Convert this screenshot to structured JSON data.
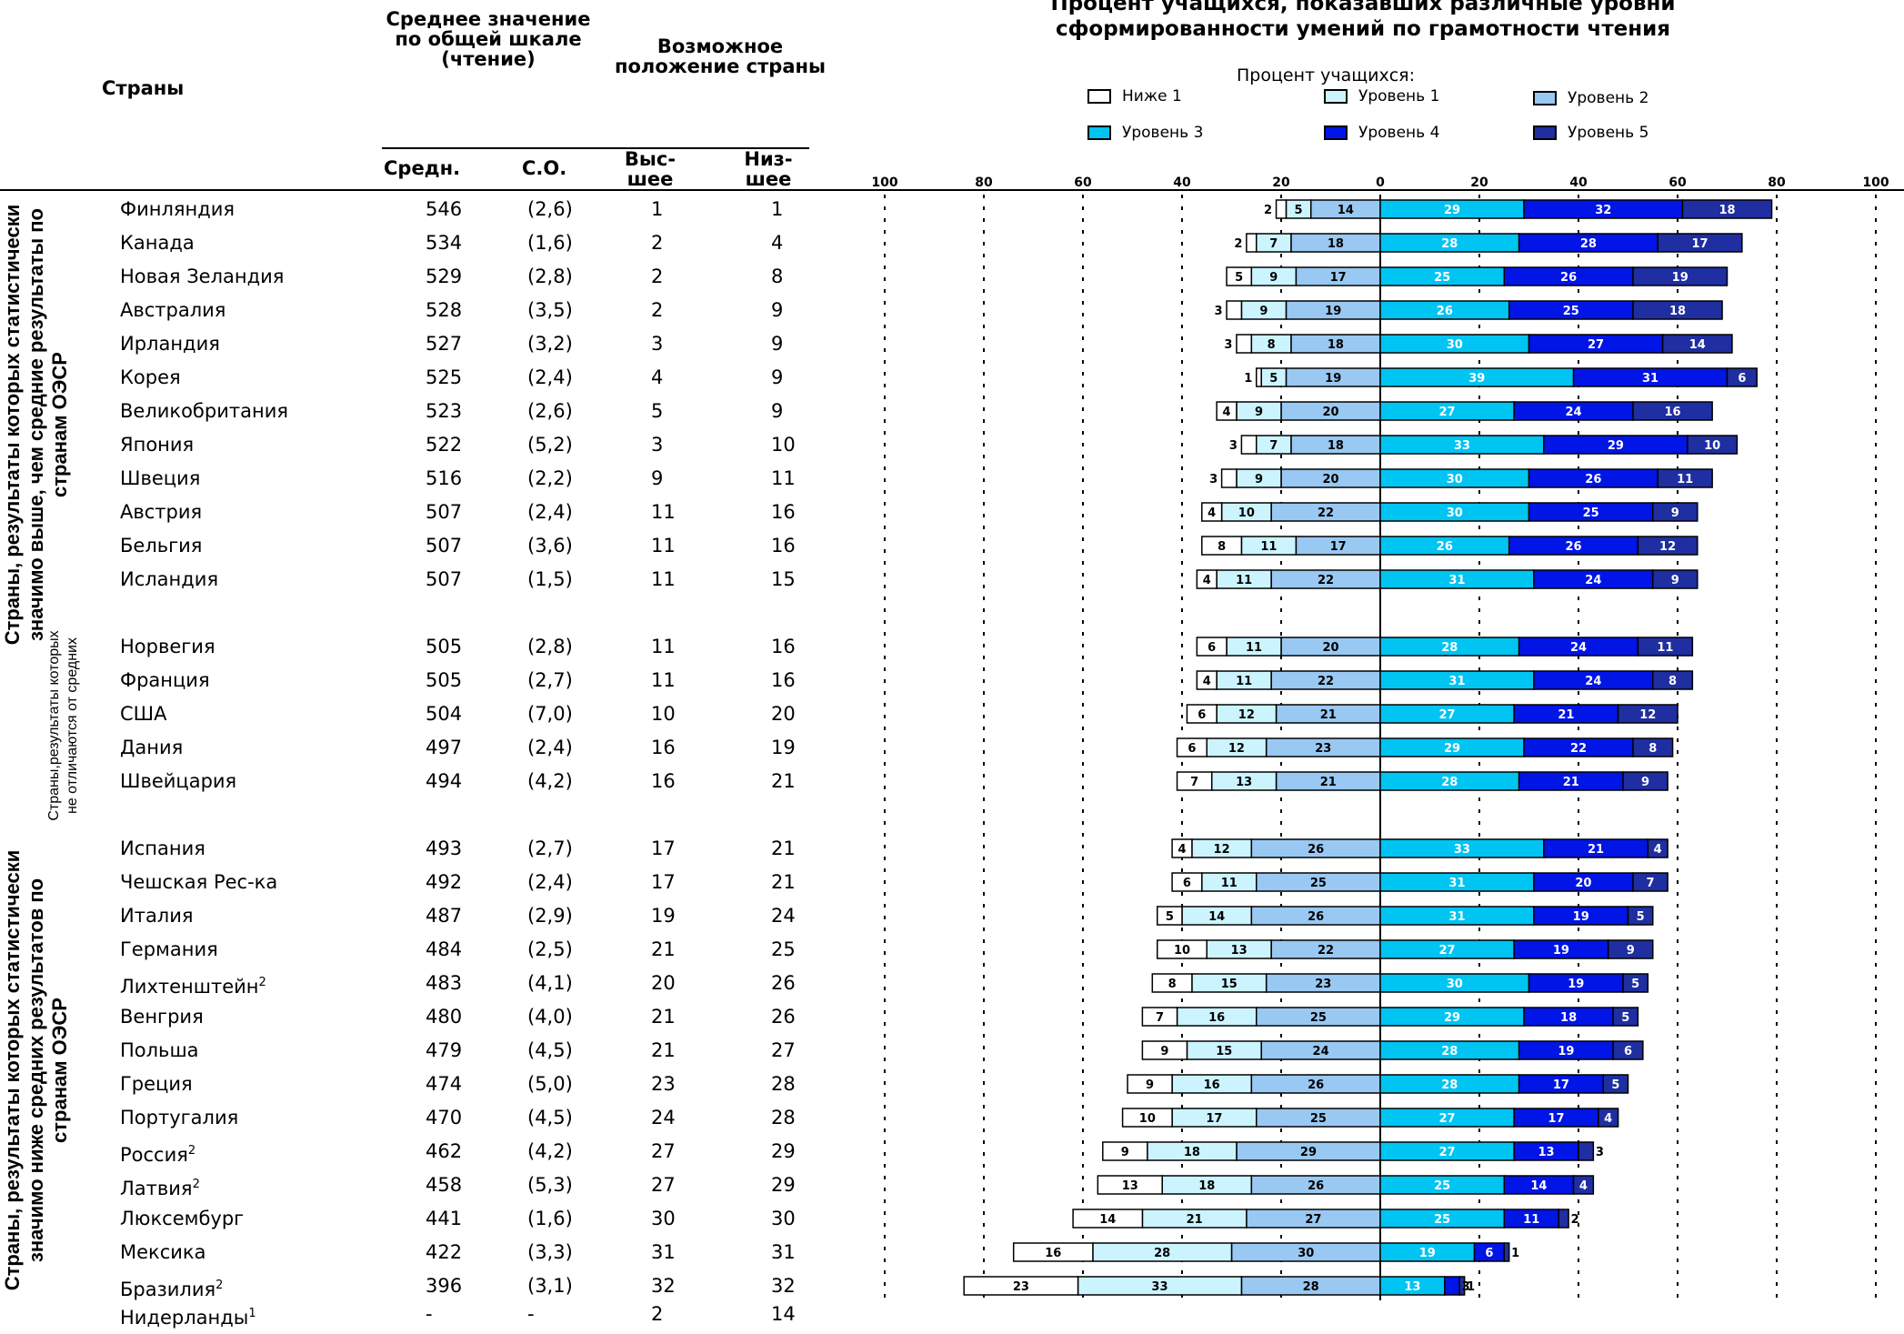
{
  "table": {
    "col_country": "Страны",
    "col_mean_group": "Среднее значение по общей шкале (чтение)",
    "col_rank_group": "Возможное положение страны",
    "col_mean": "Средн.",
    "col_se": "С.О.",
    "col_high": "Выс-шее",
    "col_low": "Низ-шее"
  },
  "groups": [
    "Страны, результаты которых статистически значимо выше, чем средние результаты по странам ОЭСР",
    "Страны,результаты которых не отличаются от средних",
    "Страны, результаты которых статистически значимо ниже средних результатов по странам ОЭСР"
  ],
  "chart_data": {
    "type": "bar",
    "title": "Процент учащихся, показавших различные уровни сформированности умений по грамотности чтения",
    "legend_title": "Процент учащихся:",
    "levels": [
      "Ниже 1",
      "Уровень 1",
      "Уровень 2",
      "Уровень 3",
      "Уровень 4",
      "Уровень 5"
    ],
    "colors": [
      "#ffffff",
      "#ccf4ff",
      "#99c8f2",
      "#00c4f2",
      "#0015e6",
      "#1f2ea0"
    ],
    "x_ticks": [
      "100",
      "80",
      "60",
      "40",
      "20",
      "0",
      "20",
      "40",
      "60",
      "80",
      "100"
    ],
    "xlim": [
      -100,
      100
    ],
    "rows": [
      {
        "country": "Финляндия",
        "mean": "546",
        "se": "(2,6)",
        "high": "1",
        "low": "1",
        "values": [
          2,
          5,
          14,
          29,
          32,
          18
        ],
        "labels": [
          "2",
          "5",
          "14",
          "29",
          "32",
          "18"
        ]
      },
      {
        "country": "Канада",
        "mean": "534",
        "se": "(1,6)",
        "high": "2",
        "low": "4",
        "values": [
          2,
          7,
          18,
          28,
          28,
          17
        ],
        "labels": [
          "2",
          "7",
          "18",
          "28",
          "28",
          "17"
        ]
      },
      {
        "country": "Новая Зеландия",
        "mean": "529",
        "se": "(2,8)",
        "high": "2",
        "low": "8",
        "values": [
          5,
          9,
          17,
          25,
          26,
          19
        ],
        "labels": [
          "5",
          "9",
          "17",
          "25",
          "26",
          "19"
        ]
      },
      {
        "country": "Австралия",
        "mean": "528",
        "se": "(3,5)",
        "high": "2",
        "low": "9",
        "values": [
          3,
          9,
          19,
          26,
          25,
          18
        ],
        "labels": [
          "3",
          "9",
          "19",
          "26",
          "25",
          "18"
        ]
      },
      {
        "country": "Ирландия",
        "mean": "527",
        "se": "(3,2)",
        "high": "3",
        "low": "9",
        "values": [
          3,
          8,
          18,
          30,
          27,
          14
        ],
        "labels": [
          "3",
          "8",
          "18",
          "30",
          "27",
          "14"
        ]
      },
      {
        "country": "Корея",
        "mean": "525",
        "se": "(2,4)",
        "high": "4",
        "low": "9",
        "values": [
          1,
          5,
          19,
          39,
          31,
          6
        ],
        "labels": [
          "1",
          "5",
          "19",
          "39",
          "31",
          "6"
        ]
      },
      {
        "country": "Великобритания",
        "mean": "523",
        "se": "(2,6)",
        "high": "5",
        "low": "9",
        "values": [
          4,
          9,
          20,
          27,
          24,
          16
        ],
        "labels": [
          "4",
          "9",
          "20",
          "27",
          "24",
          "16"
        ]
      },
      {
        "country": "Япония",
        "mean": "522",
        "se": "(5,2)",
        "high": "3",
        "low": "10",
        "values": [
          3,
          7,
          18,
          33,
          29,
          10
        ],
        "labels": [
          "3",
          "7",
          "18",
          "33",
          "29",
          "10"
        ]
      },
      {
        "country": "Швеция",
        "mean": "516",
        "se": "(2,2)",
        "high": "9",
        "low": "11",
        "values": [
          3,
          9,
          20,
          30,
          26,
          11
        ],
        "labels": [
          "3",
          "9",
          "20",
          "30",
          "26",
          "11"
        ]
      },
      {
        "country": "Австрия",
        "mean": "507",
        "se": "(2,4)",
        "high": "11",
        "low": "16",
        "values": [
          4,
          10,
          22,
          30,
          25,
          9
        ],
        "labels": [
          "4",
          "10",
          "22",
          "30",
          "25",
          "9"
        ]
      },
      {
        "country": "Бельгия",
        "mean": "507",
        "se": "(3,6)",
        "high": "11",
        "low": "16",
        "values": [
          8,
          11,
          17,
          26,
          26,
          12
        ],
        "labels": [
          "8",
          "11",
          "17",
          "26",
          "26",
          "12"
        ]
      },
      {
        "country": "Исландия",
        "mean": "507",
        "se": "(1,5)",
        "high": "11",
        "low": "15",
        "values": [
          4,
          11,
          22,
          31,
          24,
          9
        ],
        "labels": [
          "4",
          "11",
          "22",
          "31",
          "24",
          "9"
        ]
      },
      {
        "country": "Норвегия",
        "mean": "505",
        "se": "(2,8)",
        "high": "11",
        "low": "16",
        "values": [
          6,
          11,
          20,
          28,
          24,
          11
        ],
        "labels": [
          "6",
          "11",
          "20",
          "28",
          "24",
          "11"
        ]
      },
      {
        "country": "Франция",
        "mean": "505",
        "se": "(2,7)",
        "high": "11",
        "low": "16",
        "values": [
          4,
          11,
          22,
          31,
          24,
          8
        ],
        "labels": [
          "4",
          "11",
          "22",
          "31",
          "24",
          "8"
        ]
      },
      {
        "country": "США",
        "mean": "504",
        "se": "(7,0)",
        "high": "10",
        "low": "20",
        "values": [
          6,
          12,
          21,
          27,
          21,
          12
        ],
        "labels": [
          "6",
          "12",
          "21",
          "27",
          "21",
          "12"
        ]
      },
      {
        "country": "Дания",
        "mean": "497",
        "se": "(2,4)",
        "high": "16",
        "low": "19",
        "values": [
          6,
          12,
          23,
          29,
          22,
          8
        ],
        "labels": [
          "6",
          "12",
          "23",
          "29",
          "22",
          "8"
        ]
      },
      {
        "country": "Швейцария",
        "mean": "494",
        "se": "(4,2)",
        "high": "16",
        "low": "21",
        "values": [
          7,
          13,
          21,
          28,
          21,
          9
        ],
        "labels": [
          "7",
          "13",
          "21",
          "28",
          "21",
          "9"
        ]
      },
      {
        "country": "Испания",
        "mean": "493",
        "se": "(2,7)",
        "high": "17",
        "low": "21",
        "values": [
          4,
          12,
          26,
          33,
          21,
          4
        ],
        "labels": [
          "4",
          "12",
          "26",
          "33",
          "21",
          "4"
        ]
      },
      {
        "country": "Чешская Рес-ка",
        "mean": "492",
        "se": "(2,4)",
        "high": "17",
        "low": "21",
        "values": [
          6,
          11,
          25,
          31,
          20,
          7
        ],
        "labels": [
          "6",
          "11",
          "25",
          "31",
          "20",
          "7"
        ]
      },
      {
        "country": "Италия",
        "mean": "487",
        "se": "(2,9)",
        "high": "19",
        "low": "24",
        "values": [
          5,
          14,
          26,
          31,
          19,
          5
        ],
        "labels": [
          "5",
          "14",
          "26",
          "31",
          "19",
          "5"
        ]
      },
      {
        "country": "Германия",
        "mean": "484",
        "se": "(2,5)",
        "high": "21",
        "low": "25",
        "values": [
          10,
          13,
          22,
          27,
          19,
          9
        ],
        "labels": [
          "10",
          "13",
          "22",
          "27",
          "19",
          "9"
        ]
      },
      {
        "country": "Лихтенштейн",
        "sup": "2",
        "mean": "483",
        "se": "(4,1)",
        "high": "20",
        "low": "26",
        "values": [
          8,
          15,
          23,
          30,
          19,
          5
        ],
        "labels": [
          "8",
          "15",
          "23",
          "30",
          "19",
          "5"
        ]
      },
      {
        "country": "Венгрия",
        "mean": "480",
        "se": "(4,0)",
        "high": "21",
        "low": "26",
        "values": [
          7,
          16,
          25,
          29,
          18,
          5
        ],
        "labels": [
          "7",
          "16",
          "25",
          "29",
          "18",
          "5"
        ]
      },
      {
        "country": "Польша",
        "mean": "479",
        "se": "(4,5)",
        "high": "21",
        "low": "27",
        "values": [
          9,
          15,
          24,
          28,
          19,
          6
        ],
        "labels": [
          "9",
          "15",
          "24",
          "28",
          "19",
          "6"
        ]
      },
      {
        "country": "Греция",
        "mean": "474",
        "se": "(5,0)",
        "high": "23",
        "low": "28",
        "values": [
          9,
          16,
          26,
          28,
          17,
          5
        ],
        "labels": [
          "9",
          "16",
          "26",
          "28",
          "17",
          "5"
        ]
      },
      {
        "country": "Португалия",
        "mean": "470",
        "se": "(4,5)",
        "high": "24",
        "low": "28",
        "values": [
          10,
          17,
          25,
          27,
          17,
          4
        ],
        "labels": [
          "10",
          "17",
          "25",
          "27",
          "17",
          "4"
        ]
      },
      {
        "country": "Россия",
        "sup": "2",
        "mean": "462",
        "se": "(4,2)",
        "high": "27",
        "low": "29",
        "values": [
          9,
          18,
          29,
          27,
          13,
          3
        ],
        "labels": [
          "9",
          "18",
          "29",
          "27",
          "13",
          "3"
        ]
      },
      {
        "country": "Латвия",
        "sup": "2",
        "mean": "458",
        "se": "(5,3)",
        "high": "27",
        "low": "29",
        "values": [
          13,
          18,
          26,
          25,
          14,
          4
        ],
        "labels": [
          "13",
          "18",
          "26",
          "25",
          "14",
          "4"
        ]
      },
      {
        "country": "Люксембург",
        "mean": "441",
        "se": "(1,6)",
        "high": "30",
        "low": "30",
        "values": [
          14,
          21,
          27,
          25,
          11,
          2
        ],
        "labels": [
          "14",
          "21",
          "27",
          "25",
          "11",
          "2"
        ]
      },
      {
        "country": "Мексика",
        "mean": "422",
        "se": "(3,3)",
        "high": "31",
        "low": "31",
        "values": [
          16,
          28,
          30,
          19,
          6,
          1
        ],
        "labels": [
          "16",
          "28",
          "30",
          "19",
          "6",
          "1"
        ]
      },
      {
        "country": "Бразилия",
        "sup": "2",
        "mean": "396",
        "se": "(3,1)",
        "high": "32",
        "low": "32",
        "values": [
          23,
          33,
          28,
          13,
          3,
          1
        ],
        "labels": [
          "23",
          "33",
          "28",
          "13",
          "3",
          "1"
        ]
      },
      {
        "country": "Нидерланды",
        "sup": "1",
        "mean": "-",
        "se": "-",
        "high": "2",
        "low": "14",
        "values": null,
        "labels": null
      }
    ]
  }
}
